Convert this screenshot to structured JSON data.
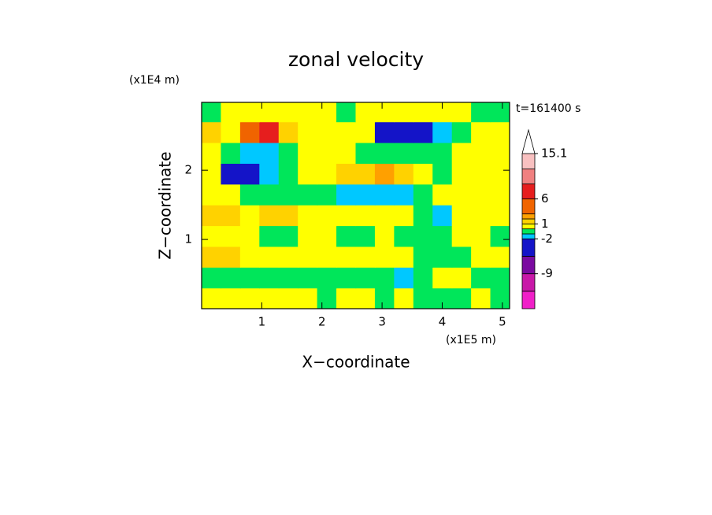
{
  "chart_data": {
    "type": "contour",
    "title": "zonal velocity",
    "xlabel": "X−coordinate",
    "ylabel": "Z−coordinate",
    "x_unit": "(x1E5 m)",
    "y_unit": "(x1E4 m)",
    "annotation": "t=161400 s",
    "xlim": [
      0,
      5.12
    ],
    "ylim": [
      0,
      2.98
    ],
    "xticks": [
      1,
      2,
      3,
      4,
      5
    ],
    "yticks": [
      1,
      2
    ],
    "x": [
      0.16,
      0.48,
      0.8,
      1.12,
      1.44,
      1.76,
      2.08,
      2.4,
      2.72,
      3.04,
      3.36,
      3.68,
      4.0,
      4.32,
      4.64,
      4.96
    ],
    "y": [
      0.15,
      0.45,
      0.75,
      1.05,
      1.35,
      1.65,
      1.95,
      2.25,
      2.55,
      2.85
    ],
    "z": [
      [
        0.5,
        0.5,
        0.5,
        0.5,
        0.5,
        0.5,
        -0.5,
        0.5,
        0.5,
        -0.5,
        0.5,
        -0.5,
        -0.5,
        -0.5,
        0.5,
        -0.5
      ],
      [
        -0.5,
        -0.5,
        -0.5,
        -0.5,
        -0.5,
        -0.5,
        -0.5,
        -0.5,
        -0.5,
        -0.5,
        -1.5,
        -0.5,
        0.5,
        0.5,
        -0.5,
        -0.5
      ],
      [
        1.5,
        1.5,
        0.5,
        0.5,
        0.5,
        0.5,
        0.5,
        0.5,
        0.5,
        0.5,
        0.5,
        -0.5,
        -0.5,
        -0.5,
        0.5,
        0.5
      ],
      [
        0.5,
        0.5,
        0.5,
        -0.5,
        -0.5,
        0.5,
        0.5,
        -0.5,
        -0.5,
        0.5,
        -0.5,
        -0.5,
        -0.5,
        0.5,
        0.5,
        -0.5
      ],
      [
        1.5,
        1.5,
        0.5,
        1.5,
        1.5,
        0.5,
        0.5,
        0.5,
        0.5,
        0.5,
        0.5,
        -0.5,
        -1.5,
        0.5,
        0.5,
        0.5
      ],
      [
        0.5,
        0.5,
        -0.5,
        -0.5,
        -0.5,
        -0.5,
        -0.5,
        -1.5,
        -1.5,
        -1.5,
        -1.5,
        -0.5,
        0.5,
        0.5,
        0.5,
        0.5
      ],
      [
        0.5,
        -3,
        -3,
        -1.5,
        -0.5,
        0.5,
        0.5,
        1.5,
        1.5,
        2.5,
        1.5,
        0.5,
        -0.5,
        0.5,
        0.5,
        0.5
      ],
      [
        0.5,
        -0.5,
        -1.5,
        -1.5,
        -0.5,
        0.5,
        0.5,
        0.5,
        -0.5,
        -0.5,
        -0.5,
        -0.5,
        -0.5,
        0.5,
        0.5,
        0.5
      ],
      [
        1.5,
        0.5,
        4,
        7,
        1.5,
        0.5,
        0.5,
        0.5,
        0.5,
        -3,
        -3,
        -3,
        -1.5,
        -0.5,
        0.5,
        0.5
      ],
      [
        -0.5,
        0.5,
        0.5,
        0.5,
        0.5,
        0.5,
        0.5,
        -0.5,
        0.5,
        0.5,
        0.5,
        0.5,
        0.5,
        0.5,
        -0.5,
        -0.5
      ]
    ],
    "colorbar": {
      "levels": [
        -16,
        -12.5,
        -9,
        -5.5,
        -2,
        -1,
        0,
        1,
        2,
        3,
        6,
        9,
        12,
        15.1
      ],
      "colors": [
        "#f020c8",
        "#c818a8",
        "#7a0aa0",
        "#1414c8",
        "#00c8ff",
        "#00e65a",
        "#ffff00",
        "#ffd200",
        "#ffa000",
        "#f06400",
        "#e61e1e",
        "#f08080",
        "#f8c0c0"
      ],
      "over_color": "#ffffff",
      "ticks": [
        15.1,
        6,
        1,
        -2,
        -9
      ]
    }
  }
}
